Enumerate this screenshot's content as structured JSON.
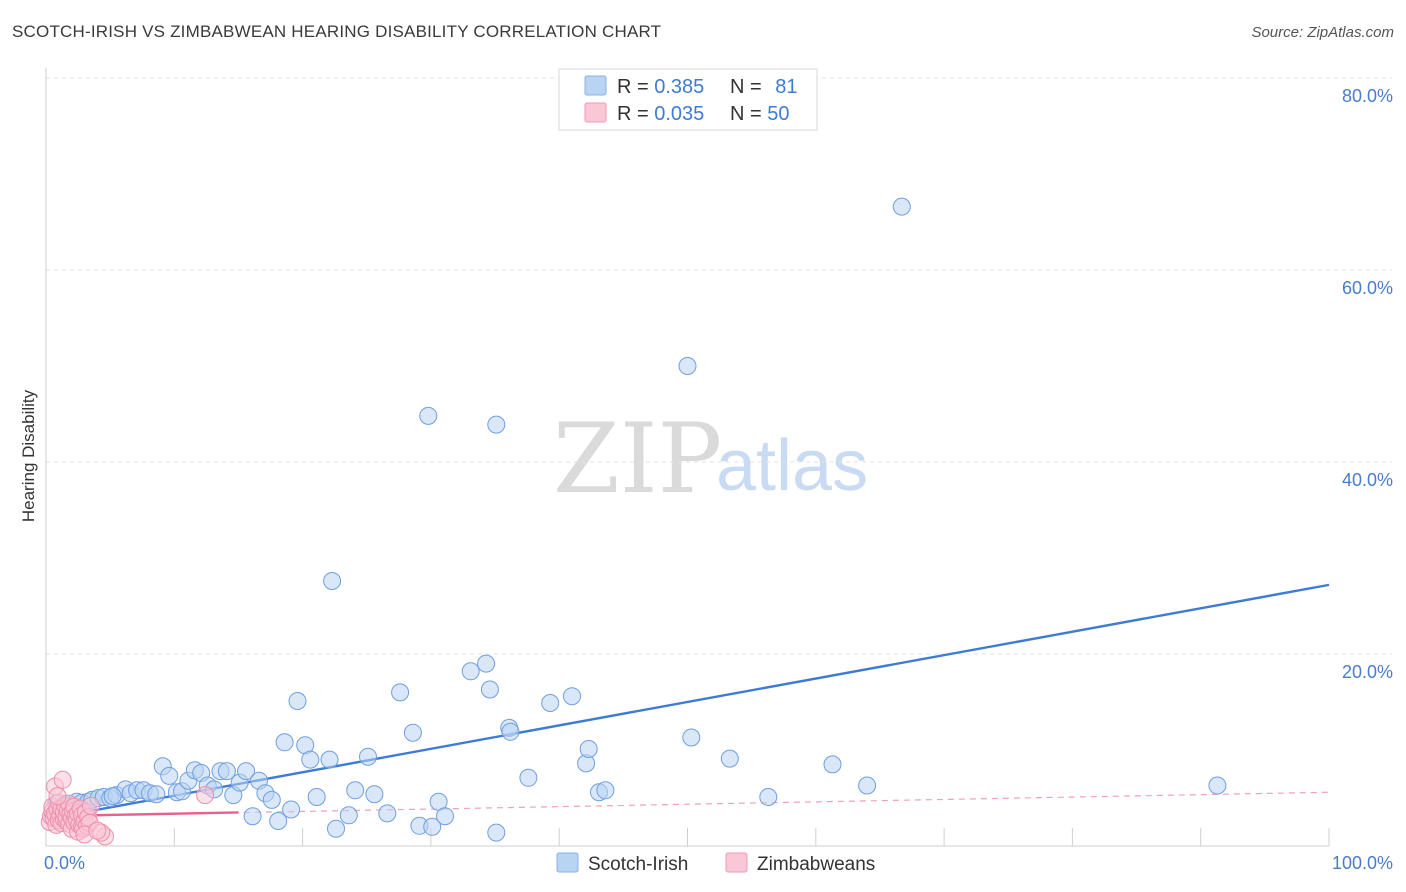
{
  "header": {
    "title": "SCOTCH-IRISH VS ZIMBABWEAN HEARING DISABILITY CORRELATION CHART",
    "source": "Source: ZipAtlas.com"
  },
  "watermark": {
    "zip": "ZIP",
    "atlas": "atlas"
  },
  "legend": {
    "r_label": "R = ",
    "n_label": "N = ",
    "rows": [
      {
        "r": "0.385",
        "n": "81",
        "color": "#b9d3f3",
        "stroke": "#8ab0e0"
      },
      {
        "r": "0.035",
        "n": "50",
        "color": "#f9c7d5",
        "stroke": "#ee9ab3"
      }
    ]
  },
  "bottom_legend": [
    {
      "label": "Scotch-Irish",
      "color": "#b9d3f3",
      "stroke": "#8ab0e0"
    },
    {
      "label": "Zimbabweans",
      "color": "#f9c7d5",
      "stroke": "#ee9ab3"
    }
  ],
  "chart_data": {
    "type": "scatter",
    "title": "SCOTCH-IRISH VS ZIMBABWEAN HEARING DISABILITY CORRELATION CHART",
    "xlabel": "",
    "ylabel": "Hearing Disability",
    "xlim": [
      0,
      100
    ],
    "ylim": [
      0,
      80
    ],
    "x_tick_labels": [
      "0.0%",
      "100.0%"
    ],
    "y_ticks": [
      20,
      40,
      60,
      80
    ],
    "y_tick_labels": [
      "20.0%",
      "40.0%",
      "60.0%",
      "80.0%"
    ],
    "grid": true,
    "legend_position": "top-center",
    "series": [
      {
        "name": "Scotch-Irish",
        "color": "#6f9fe0",
        "fill": "#b9d3f3",
        "r": 0.385,
        "n": 81,
        "trend": {
          "x": [
            0,
            100
          ],
          "y": [
            2.8,
            27.2
          ],
          "style": "solid",
          "color": "#3d7bd4"
        },
        "points": [
          [
            0.8,
            4.4
          ],
          [
            1.2,
            4.0
          ],
          [
            1.6,
            4.4
          ],
          [
            2.0,
            4.2
          ],
          [
            2.4,
            4.6
          ],
          [
            2.8,
            4.5
          ],
          [
            3.3,
            4.6
          ],
          [
            3.6,
            4.8
          ],
          [
            4.1,
            5.0
          ],
          [
            4.5,
            5.1
          ],
          [
            5.0,
            5.0
          ],
          [
            5.5,
            5.3
          ],
          [
            6.2,
            5.9
          ],
          [
            6.6,
            5.5
          ],
          [
            7.1,
            5.8
          ],
          [
            7.6,
            5.8
          ],
          [
            8.1,
            5.5
          ],
          [
            8.6,
            5.4
          ],
          [
            9.1,
            8.3
          ],
          [
            9.6,
            7.3
          ],
          [
            10.2,
            5.6
          ],
          [
            10.6,
            5.7
          ],
          [
            11.1,
            6.8
          ],
          [
            11.6,
            7.9
          ],
          [
            12.1,
            7.6
          ],
          [
            12.6,
            6.3
          ],
          [
            13.1,
            5.9
          ],
          [
            13.6,
            7.8
          ],
          [
            14.1,
            7.8
          ],
          [
            14.6,
            5.3
          ],
          [
            15.1,
            6.6
          ],
          [
            15.6,
            7.8
          ],
          [
            16.1,
            3.1
          ],
          [
            16.6,
            6.8
          ],
          [
            17.1,
            5.5
          ],
          [
            17.6,
            4.8
          ],
          [
            18.1,
            2.6
          ],
          [
            18.6,
            10.8
          ],
          [
            19.1,
            3.8
          ],
          [
            19.6,
            15.1
          ],
          [
            20.2,
            10.5
          ],
          [
            20.6,
            9.0
          ],
          [
            21.1,
            5.1
          ],
          [
            22.1,
            9.0
          ],
          [
            22.6,
            1.8
          ],
          [
            22.3,
            27.6
          ],
          [
            23.6,
            3.2
          ],
          [
            24.1,
            5.8
          ],
          [
            25.1,
            9.3
          ],
          [
            25.6,
            5.4
          ],
          [
            26.6,
            3.4
          ],
          [
            27.6,
            16.0
          ],
          [
            28.6,
            11.8
          ],
          [
            29.1,
            2.1
          ],
          [
            29.8,
            44.8
          ],
          [
            30.1,
            2.0
          ],
          [
            30.6,
            4.6
          ],
          [
            31.1,
            3.1
          ],
          [
            33.1,
            18.2
          ],
          [
            34.3,
            19.0
          ],
          [
            34.6,
            16.3
          ],
          [
            35.1,
            43.9
          ],
          [
            35.1,
            1.4
          ],
          [
            36.1,
            12.3
          ],
          [
            36.2,
            11.9
          ],
          [
            37.6,
            7.1
          ],
          [
            39.3,
            14.9
          ],
          [
            41.0,
            15.6
          ],
          [
            42.1,
            8.6
          ],
          [
            42.3,
            10.1
          ],
          [
            43.1,
            5.6
          ],
          [
            43.6,
            5.8
          ],
          [
            50.0,
            50.0
          ],
          [
            50.3,
            11.3
          ],
          [
            53.3,
            9.1
          ],
          [
            56.3,
            5.1
          ],
          [
            61.3,
            8.5
          ],
          [
            64.0,
            6.3
          ],
          [
            66.7,
            66.6
          ],
          [
            91.3,
            6.3
          ],
          [
            5.2,
            5.2
          ]
        ]
      },
      {
        "name": "Zimbabweans",
        "color": "#ee8fab",
        "fill": "#f9c7d5",
        "r": 0.035,
        "n": 50,
        "trend": {
          "x": [
            0,
            15
          ],
          "y": [
            3.1,
            3.5
          ],
          "style": "solid",
          "color": "#e8618c"
        },
        "trend_ext": {
          "x": [
            0,
            100
          ],
          "y": [
            3.1,
            5.6
          ],
          "style": "dashed",
          "color": "#f0a0b8"
        },
        "points": [
          [
            0.3,
            2.5
          ],
          [
            0.4,
            3.1
          ],
          [
            0.5,
            3.6
          ],
          [
            0.5,
            4.1
          ],
          [
            0.6,
            2.9
          ],
          [
            0.7,
            3.4
          ],
          [
            0.7,
            6.2
          ],
          [
            0.8,
            2.2
          ],
          [
            0.9,
            3.8
          ],
          [
            1.0,
            2.7
          ],
          [
            1.0,
            4.5
          ],
          [
            1.1,
            3.2
          ],
          [
            1.2,
            2.4
          ],
          [
            1.2,
            3.9
          ],
          [
            1.3,
            6.9
          ],
          [
            1.4,
            2.8
          ],
          [
            1.4,
            3.5
          ],
          [
            1.5,
            4.2
          ],
          [
            1.6,
            2.6
          ],
          [
            1.6,
            3.0
          ],
          [
            1.7,
            3.7
          ],
          [
            1.8,
            2.3
          ],
          [
            1.8,
            4.4
          ],
          [
            1.9,
            3.3
          ],
          [
            2.0,
            2.9
          ],
          [
            2.0,
            1.8
          ],
          [
            2.1,
            3.6
          ],
          [
            2.2,
            2.5
          ],
          [
            2.2,
            4.1
          ],
          [
            2.3,
            3.1
          ],
          [
            2.4,
            2.7
          ],
          [
            2.5,
            3.4
          ],
          [
            2.5,
            1.5
          ],
          [
            2.6,
            2.2
          ],
          [
            2.7,
            3.9
          ],
          [
            2.8,
            2.0
          ],
          [
            2.8,
            3.2
          ],
          [
            2.9,
            1.8
          ],
          [
            3.0,
            2.6
          ],
          [
            3.1,
            3.5
          ],
          [
            3.2,
            2.1
          ],
          [
            3.3,
            3.0
          ],
          [
            3.4,
            2.4
          ],
          [
            3.5,
            4.2
          ],
          [
            3.0,
            1.2
          ],
          [
            4.6,
            1.0
          ],
          [
            4.3,
            1.4
          ],
          [
            4.0,
            1.6
          ],
          [
            12.4,
            5.3
          ],
          [
            0.9,
            5.2
          ]
        ]
      }
    ]
  }
}
